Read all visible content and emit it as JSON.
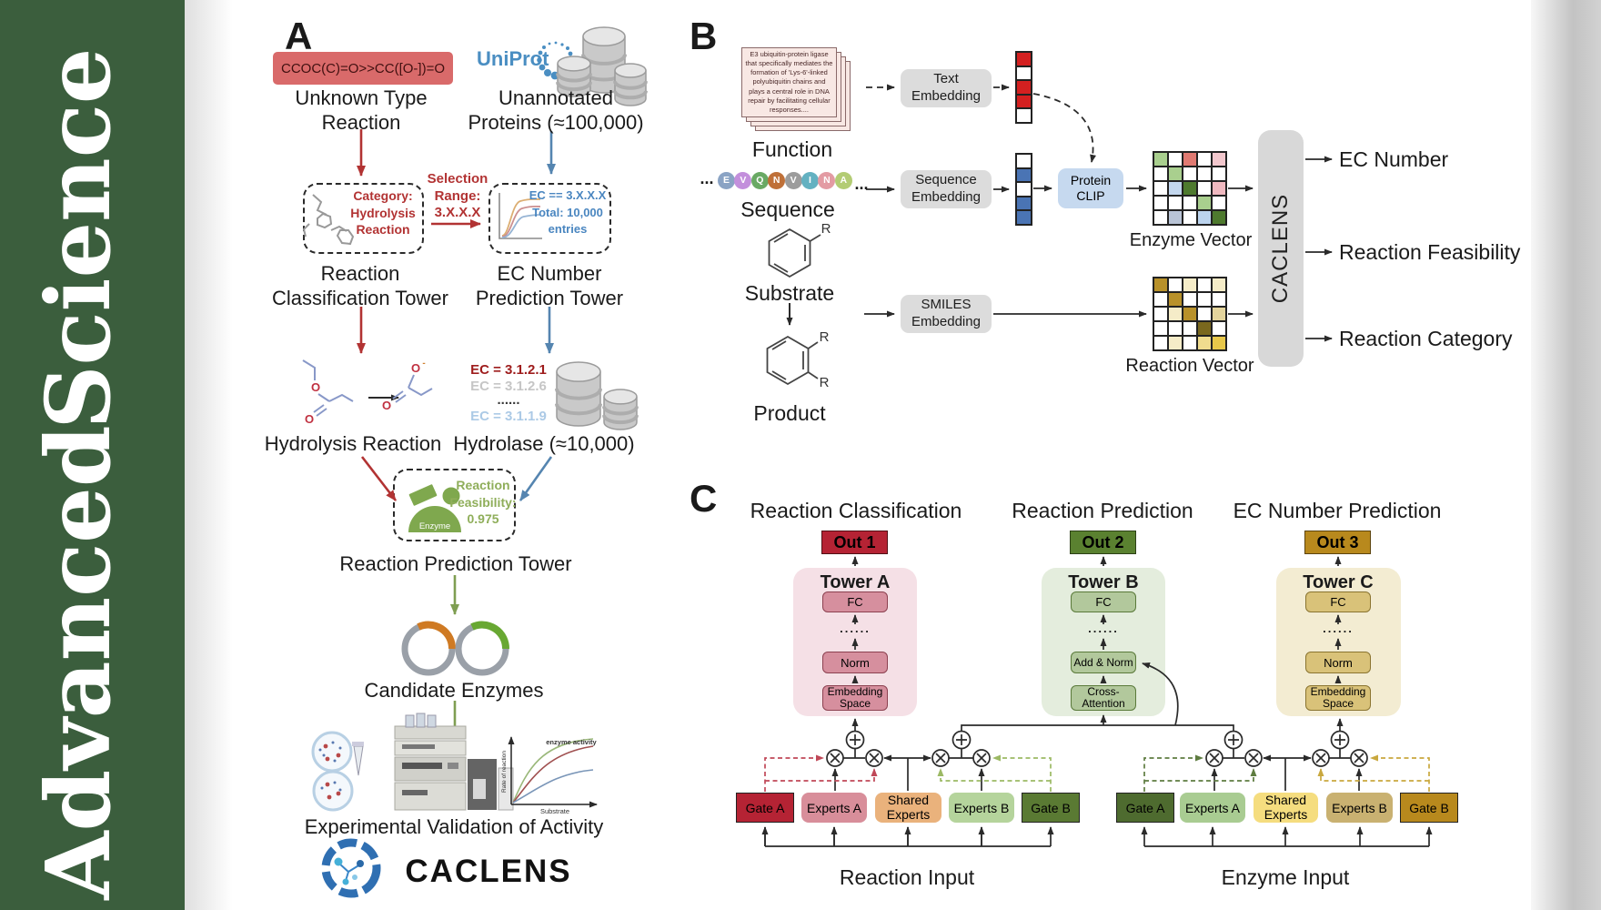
{
  "sidebar": {
    "word_top": "Science",
    "word_bottom": "Advanced"
  },
  "colors": {
    "sidebar_green": "#3b5e3d",
    "accent_red": "#b23333",
    "accent_blue": "#5585b0",
    "accent_green": "#7f9e52",
    "smiles_box": "#d96a6a",
    "out1": "#b52334",
    "out2": "#5a8130",
    "out3": "#b8891d"
  },
  "panel_a": {
    "label": "A",
    "smiles": "CCOC(C)=O>>CC([O-])=O",
    "unknown_type": "Unknown Type\nReaction",
    "uniprot": "UniProt",
    "unannotated": "Unannotated\nProteins (≈100,000)",
    "selection_range": "Selection\nRange:\n3.X.X.X",
    "category": "Category:\nHydrolysis\nReaction",
    "ec_filter": "EC == 3.X.X.X\nTotal: 10,000\nentries",
    "tower1": "Reaction\nClassification Tower",
    "tower2": "EC Number\nPrediction Tower",
    "ec_list": [
      {
        "text": "EC = 3.1.2.1",
        "color": "#9e1c1c"
      },
      {
        "text": "EC = 3.1.2.6",
        "color": "#c6c6c6"
      },
      {
        "text": "......",
        "color": "#3a3a3a"
      },
      {
        "text": "EC = 3.1.1.9",
        "color": "#accae6"
      }
    ],
    "hydrolysis": "Hydrolysis Reaction",
    "hydrolase": "Hydrolase (≈10,000)",
    "enzyme_label": "Enzyme",
    "feasibility": "Reaction\nFeasibility:\n0.975",
    "tower3": "Reaction Prediction Tower",
    "candidates": "Candidate Enzymes",
    "graph": {
      "curve_label": "enzyme activity",
      "y_label": "Rate of reaction",
      "x_label": "Substrate"
    },
    "validation": "Experimental Validation of Activity",
    "brand": "CACLENS"
  },
  "panel_b": {
    "label": "B",
    "function_card": "E3 ubiquitin-protein ligase\nthat specifically mediates the\nformation of 'Lys-6'-linked\npolyubiquitin chains and\nplays a central role in DNA\nrepair by facilitating cellular\nresponses....",
    "function": "Function",
    "ellipsis": "...",
    "residues": [
      {
        "letter": "E",
        "color": "#8aa3c4"
      },
      {
        "letter": "V",
        "color": "#c38fdc"
      },
      {
        "letter": "Q",
        "color": "#69a964"
      },
      {
        "letter": "N",
        "color": "#bf7038"
      },
      {
        "letter": "V",
        "color": "#9c9c9c"
      },
      {
        "letter": "I",
        "color": "#63b1c1"
      },
      {
        "letter": "N",
        "color": "#e39ba3"
      },
      {
        "letter": "A",
        "color": "#b3cc74"
      }
    ],
    "sequence": "Sequence",
    "substrate": "Substrate",
    "product": "Product",
    "r_group": "R",
    "text_embedding": "Text\nEmbedding",
    "sequence_embedding": "Sequence\nEmbedding",
    "smiles_embedding": "SMILES\nEmbedding",
    "protein_clip": "Protein\nCLIP",
    "text_vector": [
      "#d42020",
      "#ffffff",
      "#d42020",
      "#d42020",
      "#ffffff"
    ],
    "sequence_vector": [
      "#ffffff",
      "#4a74b4",
      "#ffffff",
      "#4a74b4",
      "#4a74b4"
    ],
    "enzyme_matrix": [
      [
        "#a9cf8e",
        "#ffffff",
        "#e07a72",
        "#ffffff",
        "#f2c7cd"
      ],
      [
        "#ffffff",
        "#a9cf8e",
        "#ffffff",
        "#ffffff",
        "#ffffff"
      ],
      [
        "#ffffff",
        "#c3d7ee",
        "#4e7a2e",
        "#ffffff",
        "#f0b9c0"
      ],
      [
        "#ffffff",
        "#ffffff",
        "#ffffff",
        "#a9cf8e",
        "#ffffff"
      ],
      [
        "#ffffff",
        "#b9c4d6",
        "#ffffff",
        "#bcd4ee",
        "#4e7a2e"
      ]
    ],
    "reaction_matrix": [
      [
        "#b8912a",
        "#ffffff",
        "#f5ecc8",
        "#ffffff",
        "#f5ecc8"
      ],
      [
        "#ffffff",
        "#b8912a",
        "#ffffff",
        "#ffffff",
        "#ffffff"
      ],
      [
        "#ffffff",
        "#f5ecc8",
        "#b8912a",
        "#ffffff",
        "#e3d49c"
      ],
      [
        "#ffffff",
        "#ffffff",
        "#ffffff",
        "#7a681e",
        "#ffffff"
      ],
      [
        "#ffffff",
        "#f5ecc8",
        "#ffffff",
        "#f0dc8e",
        "#e8c84a"
      ]
    ],
    "enzyme_vector_label": "Enzyme Vector",
    "reaction_vector_label": "Reaction Vector",
    "caclens": "CACLENS",
    "outputs": [
      "EC Number",
      "Reaction Feasibility",
      "Reaction Category"
    ]
  },
  "panel_c": {
    "label": "C",
    "dots": "......",
    "towers": [
      {
        "title": "Reaction Classification",
        "out": "Out 1",
        "name": "Tower A",
        "top_box": "FC",
        "mid_box": "Norm",
        "bottom_box": "Embedding\nSpace"
      },
      {
        "title": "Reaction Prediction",
        "out": "Out 2",
        "name": "Tower B",
        "top_box": "FC",
        "mid_box": "Add & Norm",
        "bottom_box": "Cross-\nAttention"
      },
      {
        "title": "EC Number Prediction",
        "out": "Out 3",
        "name": "Tower C",
        "top_box": "FC",
        "mid_box": "Norm",
        "bottom_box": "Embedding\nSpace"
      }
    ],
    "moe": [
      {
        "gate_a": "Gate A",
        "experts_a": "Experts A",
        "shared": "Shared\nExperts",
        "experts_b": "Experts B",
        "gate_b": "Gate B",
        "input_label": "Reaction Input"
      },
      {
        "gate_a": "Gate A",
        "experts_a": "Experts A",
        "shared": "Shared\nExperts",
        "experts_b": "Experts B",
        "gate_b": "Gate B",
        "input_label": "Enzyme Input"
      }
    ]
  }
}
